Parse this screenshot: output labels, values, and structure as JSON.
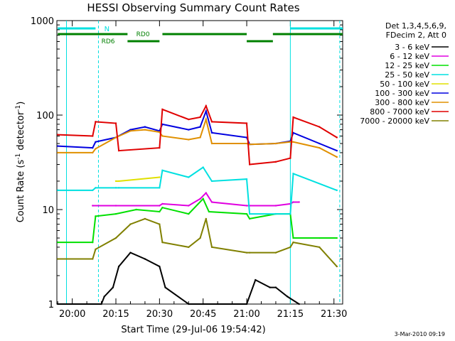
{
  "chart_data": {
    "type": "line",
    "title": "HESSI Observing Summary Count Rates",
    "xlabel": "Start Time (29-Jul-06 19:54:42)",
    "ylabel_main": "Count Rate (s",
    "ylabel_sup1": "-1",
    "ylabel_mid": " detector",
    "ylabel_sup2": "-1",
    "ylabel_end": ")",
    "y_scale": "log",
    "ylim": [
      1,
      1000
    ],
    "y_ticks": [
      "1",
      "10",
      "100",
      "1000"
    ],
    "x_range": [
      "19:54:42",
      "21:33:00"
    ],
    "x_ticks": [
      "20:00",
      "20:15",
      "20:30",
      "20:45",
      "21:00",
      "21:15",
      "21:30"
    ],
    "timestamp": "3-Mar-2010 09:19",
    "legend_header": [
      "Det 1,3,4,5,6,9,",
      "FDecim 2, Att 0"
    ],
    "legend_position": "right",
    "annotations": {
      "night_label": "N",
      "saa_label": "RD6",
      "rd0_label": "RD0"
    },
    "series": [
      {
        "name": "3 - 6 keV",
        "color": "#000000",
        "x": [
          "19:55",
          "20:10",
          "20:11",
          "20:14",
          "20:16",
          "20:20",
          "20:25",
          "20:30",
          "20:32",
          "20:40",
          "20:45",
          "20:50",
          "21:00",
          "21:03",
          "21:08",
          "21:10",
          "21:14",
          "21:18"
        ],
        "values": [
          1,
          1,
          1.2,
          1.5,
          2.5,
          3.5,
          3,
          2.5,
          1.5,
          1,
          1,
          1,
          1,
          1.8,
          1.5,
          1.5,
          1.2,
          1
        ]
      },
      {
        "name": "6 - 12 keV",
        "color": "#e000e0",
        "x": [
          "20:07",
          "20:15",
          "20:30",
          "20:31",
          "20:40",
          "20:44",
          "20:46",
          "20:48",
          "21:00",
          "21:01",
          "21:10",
          "21:15",
          "21:16",
          "21:18"
        ],
        "values": [
          11,
          11,
          11,
          11.5,
          11,
          13,
          15,
          12,
          11,
          11,
          11,
          11.5,
          12,
          12
        ]
      },
      {
        "name": "12 - 25 keV",
        "color": "#00e000",
        "x": [
          "19:55",
          "20:07",
          "20:08",
          "20:15",
          "20:22",
          "20:30",
          "20:31",
          "20:40",
          "20:45",
          "20:47",
          "21:00",
          "21:01",
          "21:10",
          "21:15",
          "21:16",
          "21:25",
          "21:31"
        ],
        "values": [
          4.5,
          4.5,
          8.5,
          9,
          10,
          9.5,
          10.5,
          9,
          13,
          9.5,
          9,
          8,
          9,
          9,
          5,
          5,
          5
        ]
      },
      {
        "name": "25 - 50 keV",
        "color": "#00e0e0",
        "x": [
          "19:55",
          "20:07",
          "20:08",
          "20:15",
          "20:16",
          "20:30",
          "20:31",
          "20:40",
          "20:45",
          "20:48",
          "21:00",
          "21:01",
          "21:10",
          "21:15",
          "21:16",
          "21:31"
        ],
        "values": [
          16,
          16,
          17,
          17,
          17,
          17,
          26,
          22,
          28,
          20,
          21,
          9,
          9,
          9,
          24,
          16
        ]
      },
      {
        "name": "50 - 100 keV",
        "color": "#e0e000",
        "x": [
          "20:15",
          "20:16",
          "20:30"
        ],
        "values": [
          20,
          20,
          22
        ]
      },
      {
        "name": "100 - 300 keV",
        "color": "#0000e0",
        "x": [
          "19:55",
          "20:07",
          "20:08",
          "20:15",
          "20:20",
          "20:25",
          "20:30",
          "20:31",
          "20:40",
          "20:44",
          "20:46",
          "20:48",
          "21:00",
          "21:01",
          "21:10",
          "21:15",
          "21:16",
          "21:25",
          "21:31"
        ],
        "values": [
          47,
          45,
          52,
          58,
          70,
          75,
          68,
          80,
          70,
          75,
          110,
          65,
          58,
          49,
          50,
          53,
          65,
          50,
          42
        ]
      },
      {
        "name": "300 - 800 keV",
        "color": "#e09000",
        "x": [
          "19:55",
          "20:07",
          "20:08",
          "20:15",
          "20:20",
          "20:25",
          "20:30",
          "20:31",
          "20:40",
          "20:44",
          "20:46",
          "20:48",
          "21:00",
          "21:01",
          "21:10",
          "21:15",
          "21:16",
          "21:25",
          "21:31"
        ],
        "values": [
          40,
          40,
          44,
          58,
          68,
          70,
          66,
          60,
          55,
          58,
          90,
          50,
          50,
          49,
          50,
          52,
          52,
          45,
          36
        ]
      },
      {
        "name": "800 - 7000 keV",
        "color": "#e00000",
        "x": [
          "19:55",
          "20:07",
          "20:08",
          "20:15",
          "20:16",
          "20:30",
          "20:31",
          "20:40",
          "20:44",
          "20:46",
          "20:48",
          "21:00",
          "21:01",
          "21:10",
          "21:15",
          "21:16",
          "21:25",
          "21:31"
        ],
        "values": [
          62,
          60,
          85,
          82,
          42,
          45,
          115,
          90,
          95,
          125,
          85,
          82,
          30,
          32,
          35,
          95,
          75,
          58
        ]
      },
      {
        "name": "7000 - 20000 keV",
        "color": "#808000",
        "x": [
          "19:55",
          "20:07",
          "20:08",
          "20:15",
          "20:20",
          "20:25",
          "20:30",
          "20:31",
          "20:40",
          "20:44",
          "20:46",
          "20:48",
          "21:00",
          "21:01",
          "21:10",
          "21:15",
          "21:16",
          "21:25",
          "21:31"
        ],
        "values": [
          3,
          3,
          3.8,
          5,
          7,
          8,
          7,
          4.5,
          4,
          5,
          8,
          4,
          3.5,
          3.5,
          3.5,
          4,
          4.5,
          4,
          2.5
        ]
      }
    ]
  }
}
